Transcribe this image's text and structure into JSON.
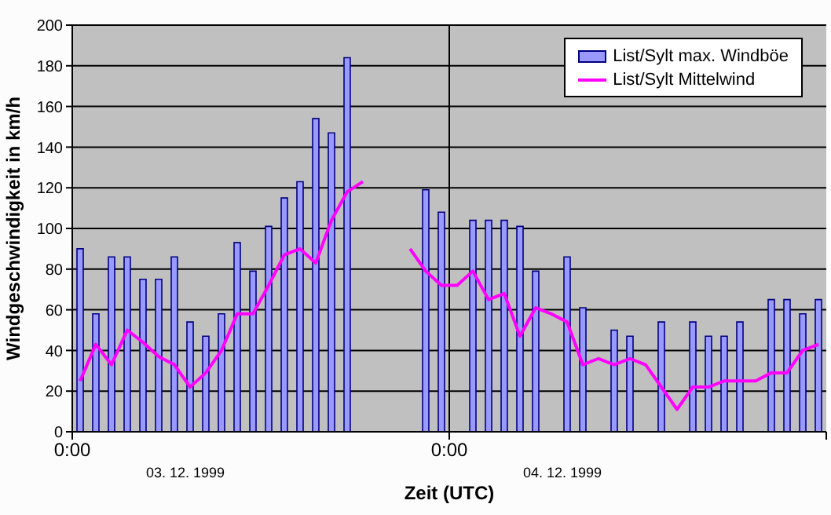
{
  "chart_data": {
    "type": "bar",
    "xlabel": "Zeit (UTC)",
    "ylabel": "Windgeschwindigkeit in km/h",
    "annotations": [
      "03. 12. 1999",
      "04. 12. 1999"
    ],
    "x": [
      0.5,
      1.5,
      2.5,
      3.5,
      4.5,
      5.5,
      6.5,
      7.5,
      8.5,
      9.5,
      10.5,
      11.5,
      12.5,
      13.5,
      14.5,
      15.5,
      16.5,
      17.5,
      18.5,
      19.5,
      20.5,
      21.5,
      22.5,
      23.5,
      24.5,
      25.5,
      26.5,
      27.5,
      28.5,
      29.5,
      30.5,
      31.5,
      32.5,
      33.5,
      34.5,
      35.5,
      36.5,
      37.5,
      38.5,
      39.5,
      40.5,
      41.5,
      42.5,
      43.5,
      44.5,
      45.5,
      46.5,
      47.5
    ],
    "series": [
      {
        "name": "List/Sylt max. Windböe",
        "color": "#9999ff",
        "values": [
          90,
          58,
          86,
          86,
          75,
          75,
          86,
          54,
          47,
          58,
          93,
          79,
          101,
          115,
          123,
          154,
          147,
          184,
          null,
          null,
          null,
          null,
          119,
          108,
          null,
          104,
          104,
          104,
          101,
          79,
          null,
          86,
          61,
          null,
          50,
          47,
          null,
          54,
          null,
          54,
          47,
          47,
          54,
          null,
          65,
          65,
          58,
          65
        ]
      },
      {
        "name": "List/Sylt Mittelwind",
        "type": "line",
        "color": "#ff00ff",
        "values": [
          25,
          43,
          33,
          50,
          44,
          37,
          33,
          22,
          29,
          40,
          58,
          58,
          72,
          87,
          90,
          83,
          104,
          118,
          123,
          null,
          null,
          90,
          79,
          72,
          72,
          79,
          65,
          68,
          47,
          61,
          58,
          54,
          33,
          36,
          33,
          36,
          33,
          22,
          11,
          22,
          22,
          25,
          25,
          25,
          29,
          29,
          40,
          43
        ]
      }
    ],
    "xlim": [
      0,
      48
    ],
    "xticks": [
      {
        "value": 0,
        "label": "0:00"
      },
      {
        "value": 24,
        "label": "0:00"
      },
      {
        "value": 48,
        "label": null
      }
    ],
    "ylim": [
      0,
      200
    ],
    "yticks": [
      0,
      20,
      40,
      60,
      80,
      100,
      120,
      140,
      160,
      180,
      200
    ],
    "ref_lines": [
      {
        "axis": "x",
        "value": 24,
        "label": null,
        "color": "#000000"
      }
    ],
    "grid": "y",
    "legend": "top right",
    "marker": "none",
    "line_style": "solid"
  }
}
